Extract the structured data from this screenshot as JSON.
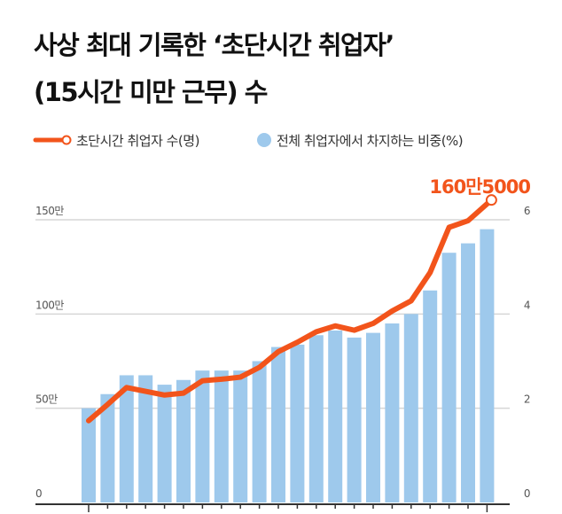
{
  "chart_data": {
    "type": "bar+line",
    "title_line1": "사상 최대 기록한 ‘초단시간 취업자’",
    "title_line2": "(15시간 미만 근무) 수",
    "legend": [
      {
        "label": "초단시간 취업자 수(명)",
        "type": "line",
        "color": "#f2541b"
      },
      {
        "label": "전체 취업자에서 차지하는 비중(%)",
        "type": "bar",
        "color": "#9ec9ec"
      }
    ],
    "left_axis": {
      "ticks": [
        "0",
        "50만",
        "100만",
        "150만"
      ],
      "values": [
        0,
        50,
        100,
        150
      ],
      "range": [
        0,
        150
      ],
      "unit": "만명"
    },
    "right_axis": {
      "ticks": [
        "0",
        "2",
        "4",
        "6"
      ],
      "values": [
        0,
        2,
        4,
        6
      ],
      "range": [
        0,
        6
      ],
      "unit": "%"
    },
    "grid": true,
    "bar_values_percent": [
      2.0,
      2.3,
      2.7,
      2.7,
      2.5,
      2.6,
      2.8,
      2.8,
      2.8,
      3.0,
      3.3,
      3.35,
      3.55,
      3.65,
      3.5,
      3.6,
      3.8,
      4.0,
      4.5,
      5.3,
      5.5,
      5.8
    ],
    "line_values_man": [
      43.4,
      52,
      61,
      59,
      57,
      58,
      64.6,
      65.4,
      66.5,
      71.7,
      80,
      85,
      90.6,
      93.7,
      91.4,
      95,
      101.6,
      107,
      122,
      146,
      149.5,
      160.5
    ],
    "annotation": "160만5000"
  }
}
